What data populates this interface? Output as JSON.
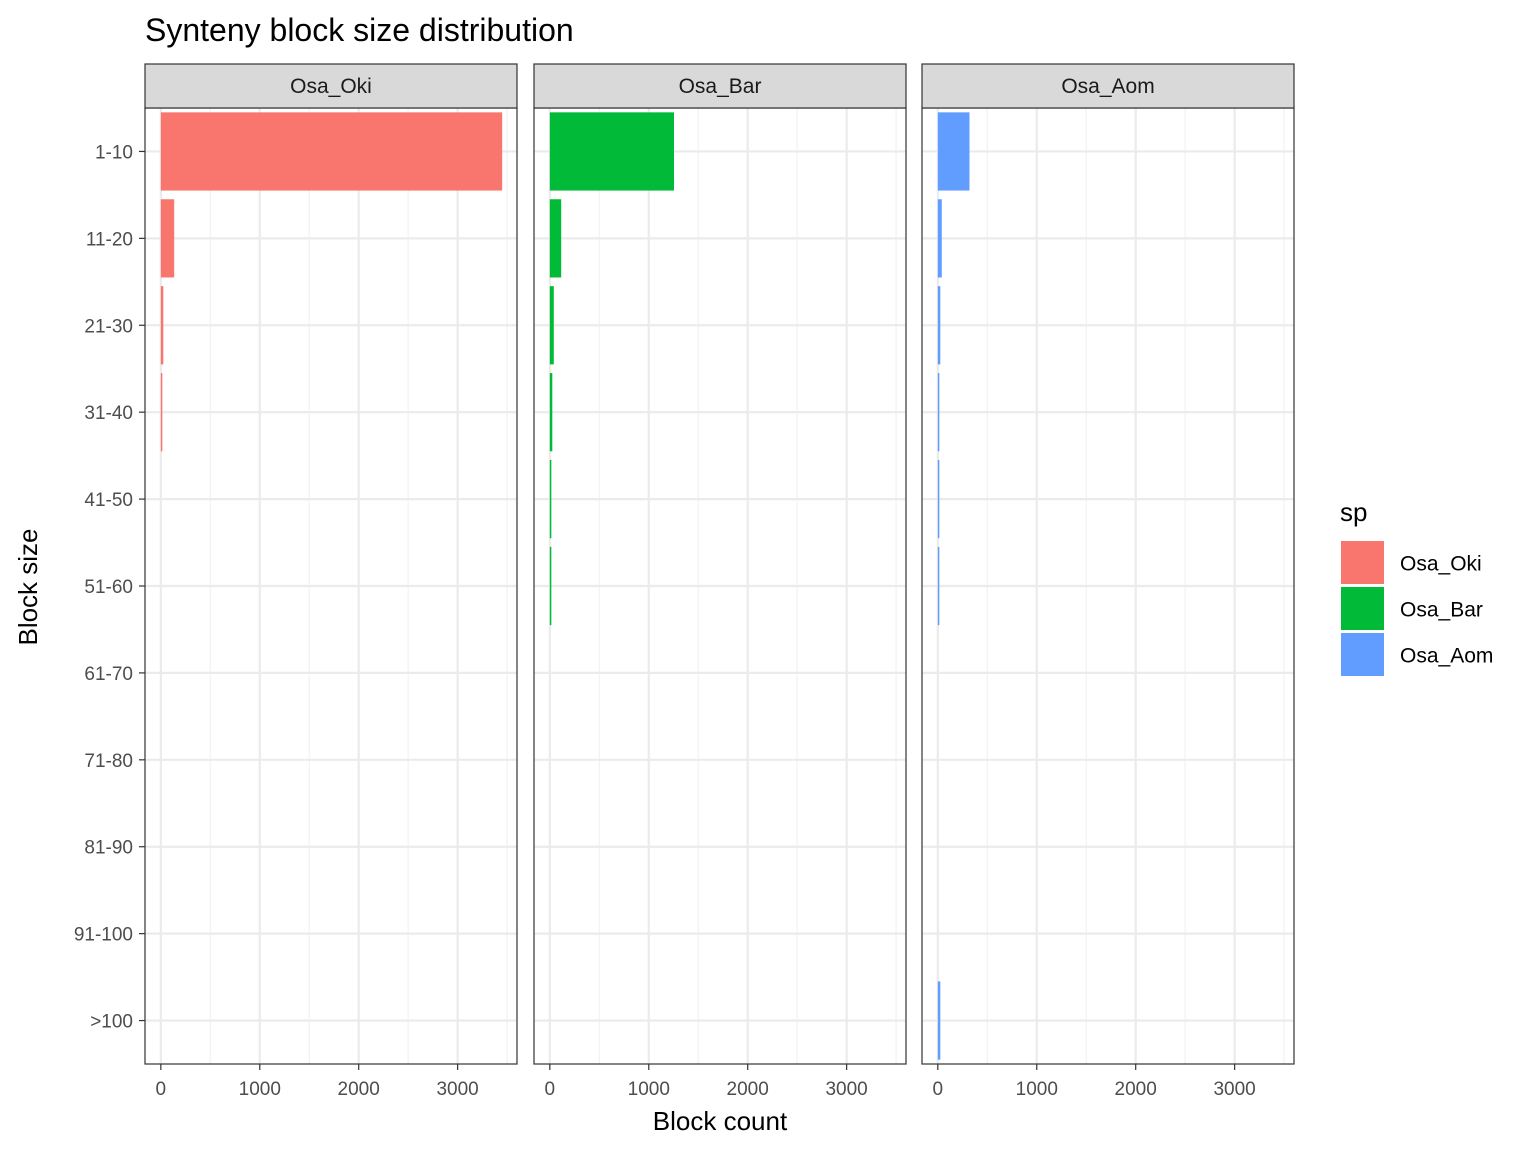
{
  "chart_data": {
    "type": "bar",
    "orientation": "horizontal",
    "title": "Synteny block size distribution",
    "xlabel": "Block count",
    "ylabel": "Block size",
    "categories": [
      "1-10",
      "11-20",
      "21-30",
      "31-40",
      "41-50",
      "51-60",
      "61-70",
      "71-80",
      "81-90",
      "91-100",
      ">100"
    ],
    "xlim": [
      -160,
      3600
    ],
    "xticks": [
      0,
      1000,
      2000,
      3000
    ],
    "grid": true,
    "facets": [
      "Osa_Oki",
      "Osa_Bar",
      "Osa_Aom"
    ],
    "series": [
      {
        "name": "Osa_Oki",
        "color": "#F8766D",
        "values": [
          3450,
          135,
          25,
          12,
          0,
          0,
          0,
          0,
          0,
          0,
          0
        ]
      },
      {
        "name": "Osa_Bar",
        "color": "#00BA38",
        "values": [
          1255,
          115,
          40,
          25,
          15,
          10,
          0,
          0,
          0,
          0,
          0
        ]
      },
      {
        "name": "Osa_Aom",
        "color": "#619CFF",
        "values": [
          320,
          40,
          25,
          12,
          10,
          10,
          0,
          0,
          0,
          0,
          25
        ]
      }
    ],
    "legend": {
      "title": "sp",
      "position": "right"
    }
  }
}
